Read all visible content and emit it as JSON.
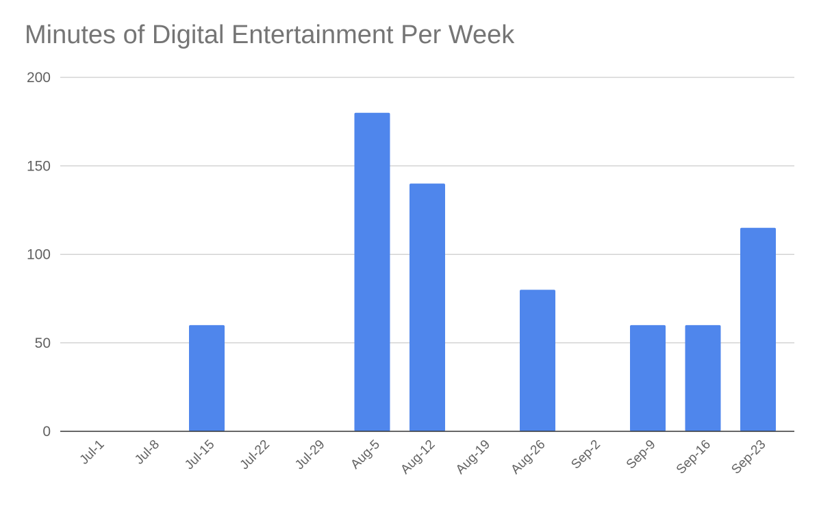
{
  "chart_data": {
    "type": "bar",
    "title": "Minutes of Digital Entertainment Per Week",
    "xlabel": "",
    "ylabel": "",
    "categories": [
      "Jul-1",
      "Jul-8",
      "Jul-15",
      "Jul-22",
      "Jul-29",
      "Aug-5",
      "Aug-12",
      "Aug-19",
      "Aug-26",
      "Sep-2",
      "Sep-9",
      "Sep-16",
      "Sep-23"
    ],
    "values": [
      0,
      0,
      60,
      0,
      0,
      180,
      140,
      0,
      80,
      0,
      60,
      60,
      115
    ],
    "ylim": [
      0,
      200
    ],
    "yticks": [
      0,
      50,
      100,
      150,
      200
    ],
    "grid": true,
    "legend": "none",
    "bar_color": "#4f86ec",
    "grid_color": "#cccccc",
    "axis_color": "#333333"
  }
}
